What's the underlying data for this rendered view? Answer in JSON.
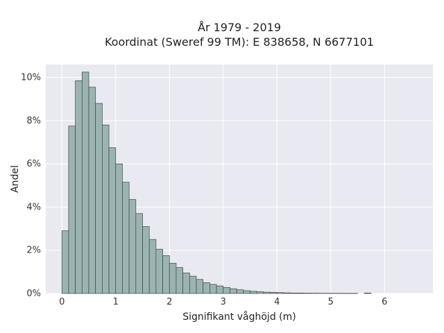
{
  "chart_data": {
    "type": "bar",
    "title_lines": [
      "År 1979 - 2019",
      "Koordinat (Sweref 99 TM): E 838658, N 6677101"
    ],
    "xlabel": "Signifikant våghöjd (m)",
    "ylabel": "Andel",
    "xlim": [
      -0.3,
      6.9
    ],
    "ylim": [
      0,
      10.6
    ],
    "x_ticks": [
      0,
      1,
      2,
      3,
      4,
      5,
      6
    ],
    "x_tick_labels": [
      "0",
      "1",
      "2",
      "3",
      "4",
      "5",
      "6"
    ],
    "y_ticks": [
      0,
      2,
      4,
      6,
      8,
      10
    ],
    "y_tick_labels": [
      "0%",
      "2%",
      "4%",
      "6%",
      "8%",
      "10%"
    ],
    "bin_width": 0.125,
    "bin_starts": [
      0.0,
      0.125,
      0.25,
      0.375,
      0.5,
      0.625,
      0.75,
      0.875,
      1.0,
      1.125,
      1.25,
      1.375,
      1.5,
      1.625,
      1.75,
      1.875,
      2.0,
      2.125,
      2.25,
      2.375,
      2.5,
      2.625,
      2.75,
      2.875,
      3.0,
      3.125,
      3.25,
      3.375,
      3.5,
      3.625,
      3.75,
      3.875,
      4.0,
      4.125,
      4.25,
      4.375,
      4.5,
      4.625,
      4.75,
      4.875,
      5.0,
      5.125,
      5.25,
      5.375,
      5.5,
      5.625,
      5.75,
      5.875,
      6.0
    ],
    "values": [
      2.9,
      7.75,
      9.85,
      10.25,
      9.55,
      8.8,
      7.8,
      6.75,
      6.0,
      5.15,
      4.35,
      3.7,
      3.1,
      2.5,
      2.05,
      1.75,
      1.4,
      1.2,
      0.95,
      0.8,
      0.65,
      0.5,
      0.42,
      0.35,
      0.28,
      0.22,
      0.17,
      0.13,
      0.1,
      0.08,
      0.06,
      0.05,
      0.04,
      0.03,
      0.02,
      0.02,
      0.015,
      0.012,
      0.01,
      0.008,
      0.007,
      0.006,
      0.005,
      0.004,
      0.0,
      0.02,
      0.0,
      0.0,
      0.0
    ],
    "grid": true,
    "colors": {
      "plot_background": "#e9e9f1",
      "grid": "#ffffff",
      "bar_fill": "#9bb4b2",
      "bar_edge": "#3c4444",
      "page_background": "#ffffff"
    }
  }
}
